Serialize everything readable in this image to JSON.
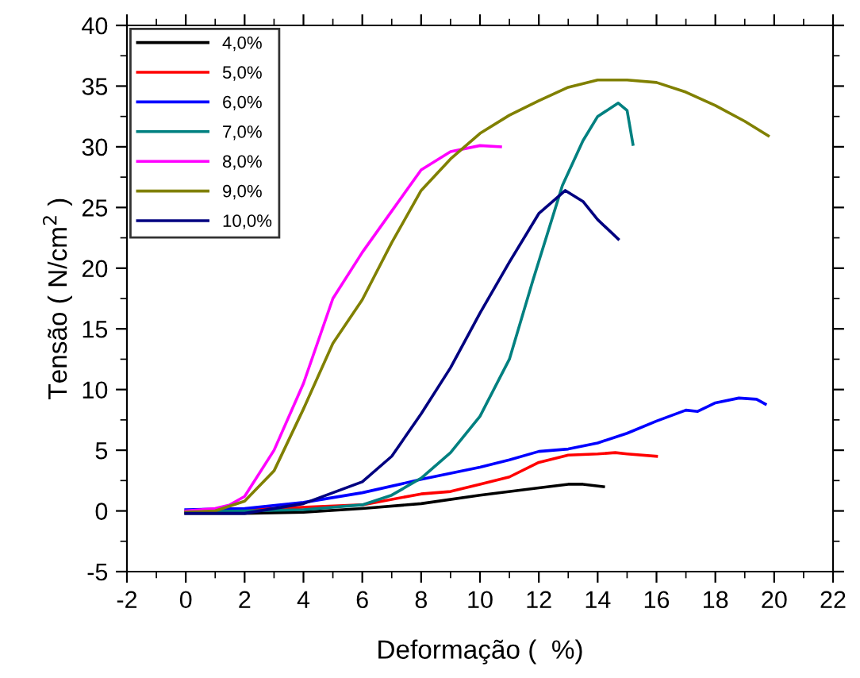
{
  "chart_data": {
    "type": "line",
    "xlabel": "Deformação (  %)",
    "ylabel": "Tensão ( N/cm$^{2}$ )",
    "xlim": [
      -2,
      22
    ],
    "ylim": [
      -5,
      40
    ],
    "xticks": [
      -2,
      {
        "value": -1,
        "label": null
      },
      0,
      {
        "value": 1,
        "label": null
      },
      2,
      {
        "value": 3,
        "label": null
      },
      4,
      {
        "value": 5,
        "label": null
      },
      6,
      {
        "value": 7,
        "label": null
      },
      8,
      {
        "value": 9,
        "label": null
      },
      10,
      {
        "value": 11,
        "label": null
      },
      12,
      {
        "value": 13,
        "label": null
      },
      14,
      {
        "value": 15,
        "label": null
      },
      16,
      {
        "value": 17,
        "label": null
      },
      18,
      {
        "value": 19,
        "label": null
      },
      20,
      {
        "value": 21,
        "label": null
      },
      22
    ],
    "yticks": [
      -5,
      {
        "value": -2.5,
        "label": null
      },
      0,
      {
        "value": 2.5,
        "label": null
      },
      5,
      {
        "value": 7.5,
        "label": null
      },
      10,
      {
        "value": 12.5,
        "label": null
      },
      15,
      {
        "value": 17.5,
        "label": null
      },
      20,
      {
        "value": 22.5,
        "label": null
      },
      25,
      {
        "value": 27.5,
        "label": null
      },
      30,
      {
        "value": 32.5,
        "label": null
      },
      35,
      {
        "value": 37.5,
        "label": null
      },
      40
    ],
    "grid": false,
    "legend": "top left",
    "marker": "none",
    "line_style": "solid",
    "series": [
      {
        "name": "4,0%",
        "color": "#000000",
        "x": [
          0,
          2,
          4,
          6,
          8,
          10,
          12,
          13,
          13.5,
          14.2
        ],
        "values": [
          -0.2,
          -0.2,
          -0.1,
          0.2,
          0.6,
          1.3,
          1.9,
          2.2,
          2.2,
          2.0
        ]
      },
      {
        "name": "5,0%",
        "color": "#ff0000",
        "x": [
          0,
          6,
          8,
          9,
          10,
          11,
          12,
          13,
          14,
          14.6,
          15,
          16
        ],
        "values": [
          -0.1,
          0.5,
          1.4,
          1.6,
          2.2,
          2.8,
          4.0,
          4.6,
          4.7,
          4.8,
          4.7,
          4.5
        ]
      },
      {
        "name": "6,0%",
        "color": "#0000ff",
        "x": [
          0,
          2,
          4,
          6,
          8,
          10,
          11,
          12,
          13,
          14,
          15,
          16,
          17,
          17.4,
          18,
          18.8,
          19.4,
          19.7
        ],
        "values": [
          0.1,
          0.2,
          0.7,
          1.5,
          2.6,
          3.6,
          4.2,
          4.9,
          5.1,
          5.6,
          6.4,
          7.4,
          8.3,
          8.2,
          8.9,
          9.3,
          9.2,
          8.8
        ]
      },
      {
        "name": "7,0%",
        "color": "#008080",
        "x": [
          0,
          4,
          6,
          7,
          8,
          9,
          10,
          11,
          11.8,
          12.8,
          13.5,
          14,
          14.7,
          15,
          15.2
        ],
        "values": [
          -0.1,
          0.1,
          0.5,
          1.3,
          2.7,
          4.8,
          7.8,
          12.5,
          19,
          26.8,
          30.5,
          32.5,
          33.6,
          33,
          30.2
        ]
      },
      {
        "name": "8,0%",
        "color": "#ff00ff",
        "x": [
          0,
          1,
          1.5,
          2,
          3,
          4,
          5,
          6,
          7,
          8,
          9,
          10,
          10.7
        ],
        "values": [
          0,
          0.2,
          0.5,
          1.2,
          5,
          10.5,
          17.5,
          21.3,
          24.7,
          28.1,
          29.6,
          30.1,
          30.0
        ]
      },
      {
        "name": "9,0%",
        "color": "#808000",
        "x": [
          0,
          1,
          2,
          3,
          4,
          5,
          6,
          7,
          8,
          9,
          10,
          11,
          12,
          13,
          14,
          15,
          16,
          17,
          18,
          19,
          19.8
        ],
        "values": [
          -0.1,
          0,
          0.8,
          3.3,
          8.4,
          13.8,
          17.4,
          22.1,
          26.4,
          29,
          31.1,
          32.6,
          33.8,
          34.9,
          35.5,
          35.5,
          35.3,
          34.5,
          33.4,
          32.1,
          30.9
        ]
      },
      {
        "name": "10,0%",
        "color": "#000080",
        "x": [
          0,
          2,
          4,
          5,
          6,
          7,
          8,
          9,
          10,
          11,
          12,
          12.9,
          13.5,
          14,
          14.7
        ],
        "values": [
          -0.2,
          -0.2,
          0.6,
          1.5,
          2.4,
          4.5,
          8,
          11.8,
          16.3,
          20.5,
          24.5,
          26.4,
          25.5,
          24,
          22.4
        ]
      }
    ]
  }
}
